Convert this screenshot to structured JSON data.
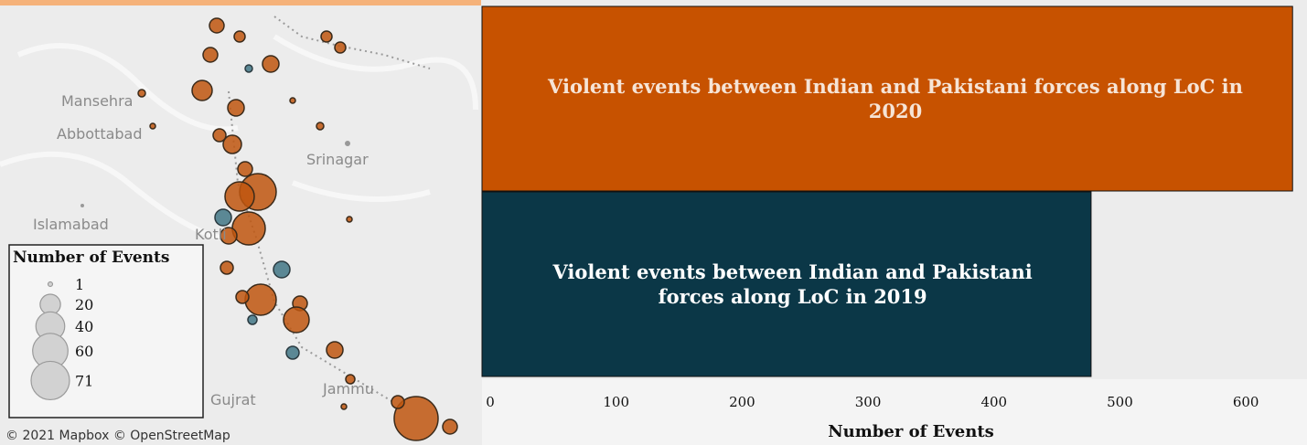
{
  "map": {
    "places": [
      "Mansehra",
      "Abbottabad",
      "Srinagar",
      "Islamabad",
      "Kotli",
      "Gujrat",
      "Jammu"
    ],
    "attribution": "© 2021 Mapbox © OpenStreetMap"
  },
  "legend": {
    "title": "Number of Events",
    "sizes": [
      1,
      20,
      40,
      60,
      71
    ]
  },
  "chart_data": {
    "type": "bar",
    "orientation": "horizontal",
    "categories": [
      "Violent events between Indian and Pakistani forces along LoC in 2020",
      "Violent events between Indian and Pakistani forces along LoC in 2019"
    ],
    "values": [
      640,
      480
    ],
    "colors": [
      "#c75200",
      "#0b3747"
    ],
    "label_colors": [
      "#f6e4d6",
      "#ffffff"
    ],
    "xlim": [
      0,
      650
    ],
    "xticks": [
      0,
      100,
      200,
      300,
      400,
      500,
      600
    ],
    "x_label": "Number of Events"
  }
}
